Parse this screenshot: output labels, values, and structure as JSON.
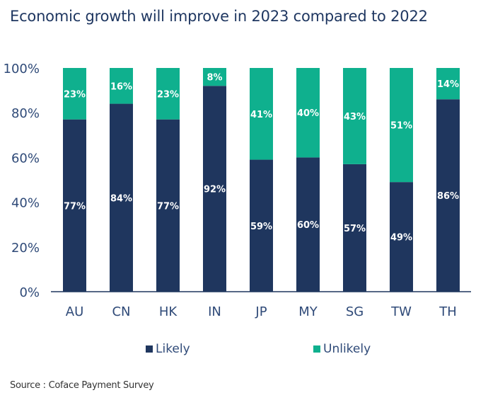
{
  "colors": {
    "likely": "#1f365e",
    "unlikely": "#0fb08e",
    "axis_text": "#2f4a78",
    "title_text": "#1f3761",
    "data_label": "#ffffff"
  },
  "title": "Economic growth will improve in 2023  compared to 2022",
  "source": "Source : Coface Payment Survey",
  "legend": [
    {
      "label": "Likely",
      "series": "likely"
    },
    {
      "label": "Unlikely",
      "series": "unlikely"
    }
  ],
  "chart_data": {
    "type": "bar",
    "stacked": true,
    "title": "Economic growth will improve in 2023  compared to 2022",
    "xlabel": "",
    "ylabel": "",
    "ylim": [
      0,
      100
    ],
    "yticks": [
      "0%",
      "20%",
      "40%",
      "60%",
      "80%",
      "100%"
    ],
    "ytick_values": [
      0,
      20,
      40,
      60,
      80,
      100
    ],
    "categories": [
      "AU",
      "CN",
      "HK",
      "IN",
      "JP",
      "MY",
      "SG",
      "TW",
      "TH"
    ],
    "series": [
      {
        "name": "Likely",
        "key": "likely",
        "values": [
          77,
          84,
          77,
          92,
          59,
          60,
          57,
          49,
          86
        ],
        "labels": [
          "77%",
          "84%",
          "77%",
          "92%",
          "59%",
          "60%",
          "57%",
          "49%",
          "86%"
        ]
      },
      {
        "name": "Unlikely",
        "key": "unlikely",
        "values": [
          23,
          16,
          23,
          8,
          41,
          40,
          43,
          51,
          14
        ],
        "labels": [
          "23%",
          "16%",
          "23%",
          "8%",
          "41%",
          "40%",
          "43%",
          "51%",
          "14%"
        ]
      }
    ],
    "grid": false,
    "legend_position": "bottom"
  }
}
